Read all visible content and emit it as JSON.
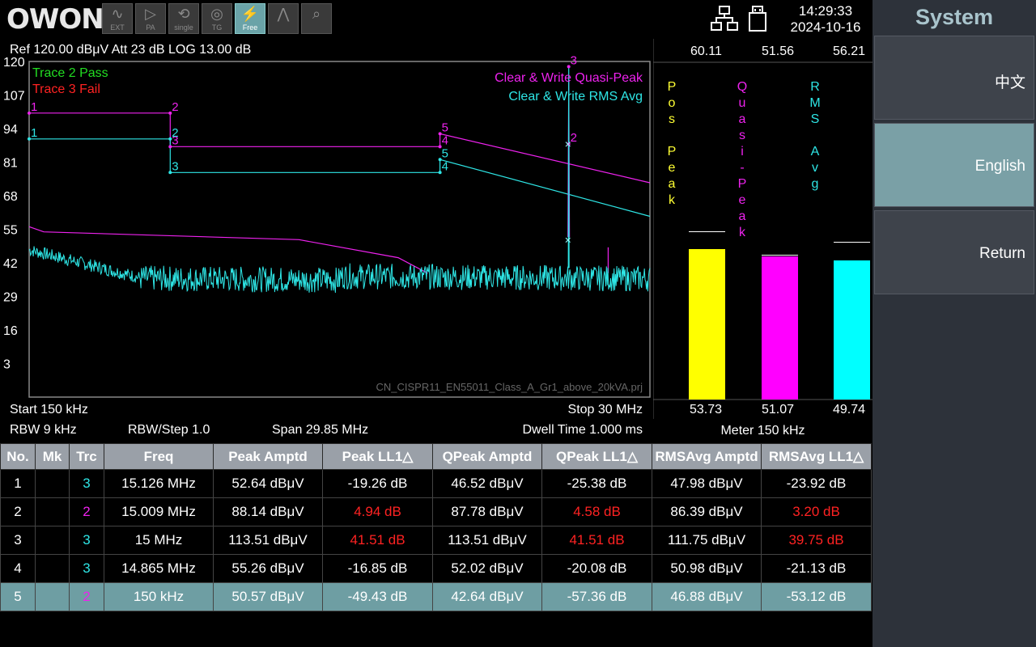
{
  "brand": "OWON",
  "toolbar": [
    {
      "name": "ext-button",
      "label": "EXT",
      "glyph": "∿"
    },
    {
      "name": "pa-button",
      "label": "PA",
      "glyph": "▷"
    },
    {
      "name": "single-button",
      "label": "single",
      "glyph": "⟲"
    },
    {
      "name": "tg-button",
      "label": "TG",
      "glyph": "◎"
    },
    {
      "name": "free-button",
      "label": "Free",
      "glyph": "⚡"
    },
    {
      "name": "peak-button",
      "label": "",
      "glyph": "⋀"
    },
    {
      "name": "search-button",
      "label": "",
      "glyph": "⌕"
    }
  ],
  "status": {
    "time": "14:29:33",
    "date": "2024-10-16"
  },
  "graph": {
    "ref_line": "Ref 120.00 dBμV  Att 23 dB  LOG 13.00 dB",
    "trace2_status": "Trace 2 Pass",
    "trace3_status": "Trace 3 Fail",
    "mode_quasi": "Clear & Write Quasi-Peak",
    "mode_rms": "Clear & Write RMS Avg",
    "project": "CN_CISPR11_EN55011_Class_A_Gr1_above_20kVA.prj",
    "y_ticks": [
      "120",
      "107",
      "94",
      "81",
      "68",
      "55",
      "42",
      "29",
      "16",
      "3"
    ],
    "start": "Start 150 kHz",
    "stop": "Stop 30 MHz",
    "rbw": "RBW 9 kHz",
    "rbw_step": "RBW/Step 1.0",
    "span": "Span 29.85 MHz",
    "dwell": "Dwell Time 1.000 ms",
    "colors": {
      "cyan": "#2ee6e6",
      "magenta": "#ee22ee",
      "green": "#22dd22",
      "red": "#ff2222"
    }
  },
  "meter": {
    "top_values": [
      "60.11",
      "51.56",
      "56.21"
    ],
    "bottom_values": [
      "53.73",
      "51.07",
      "49.74"
    ],
    "labels": [
      "Pos Peak",
      "Quasi-Peak",
      "RMS Avg"
    ],
    "levels": [
      53.73,
      51.07,
      49.74
    ],
    "maxhold": [
      60.11,
      51.56,
      56.21
    ],
    "footer": "Meter 150 kHz",
    "colors": [
      "#ffff00",
      "#ff00ff",
      "#00ffff"
    ]
  },
  "table": {
    "headers": [
      "No.",
      "Mk",
      "Trc",
      "Freq",
      "Peak Amptd",
      "Peak LL1△",
      "QPeak Amptd",
      "QPeak LL1△",
      "RMSAvg Amptd",
      "RMSAvg LL1△"
    ],
    "rows": [
      {
        "no": "1",
        "mk": "",
        "trc": "3",
        "freq": "15.126 MHz",
        "peak": "52.64 dBμV",
        "peak_ll": "-19.26 dB",
        "qpeak": "46.52 dBμV",
        "qpeak_ll": "-25.38 dB",
        "rms": "47.98 dBμV",
        "rms_ll": "-23.92 dB"
      },
      {
        "no": "2",
        "mk": "",
        "trc": "2",
        "freq": "15.009 MHz",
        "peak": "88.14 dBμV",
        "peak_ll": "4.94 dB",
        "qpeak": "87.78 dBμV",
        "qpeak_ll": "4.58 dB",
        "rms": "86.39 dBμV",
        "rms_ll": "3.20 dB"
      },
      {
        "no": "3",
        "mk": "",
        "trc": "3",
        "freq": "15 MHz",
        "peak": "113.51 dBμV",
        "peak_ll": "41.51 dB",
        "qpeak": "113.51 dBμV",
        "qpeak_ll": "41.51 dB",
        "rms": "111.75 dBμV",
        "rms_ll": "39.75 dB"
      },
      {
        "no": "4",
        "mk": "",
        "trc": "3",
        "freq": "14.865 MHz",
        "peak": "55.26 dBμV",
        "peak_ll": "-16.85 dB",
        "qpeak": "52.02 dBμV",
        "qpeak_ll": "-20.08 dB",
        "rms": "50.98 dBμV",
        "rms_ll": "-21.13 dB"
      },
      {
        "no": "5",
        "mk": "",
        "trc": "2",
        "freq": "150 kHz",
        "peak": "50.57 dBμV",
        "peak_ll": "-49.43 dB",
        "qpeak": "42.64 dBμV",
        "qpeak_ll": "-57.36 dB",
        "rms": "46.88 dBμV",
        "rms_ll": "-53.12 dB"
      }
    ]
  },
  "side_menu": {
    "title": "System",
    "items": [
      "中文",
      "English",
      "Return"
    ]
  }
}
